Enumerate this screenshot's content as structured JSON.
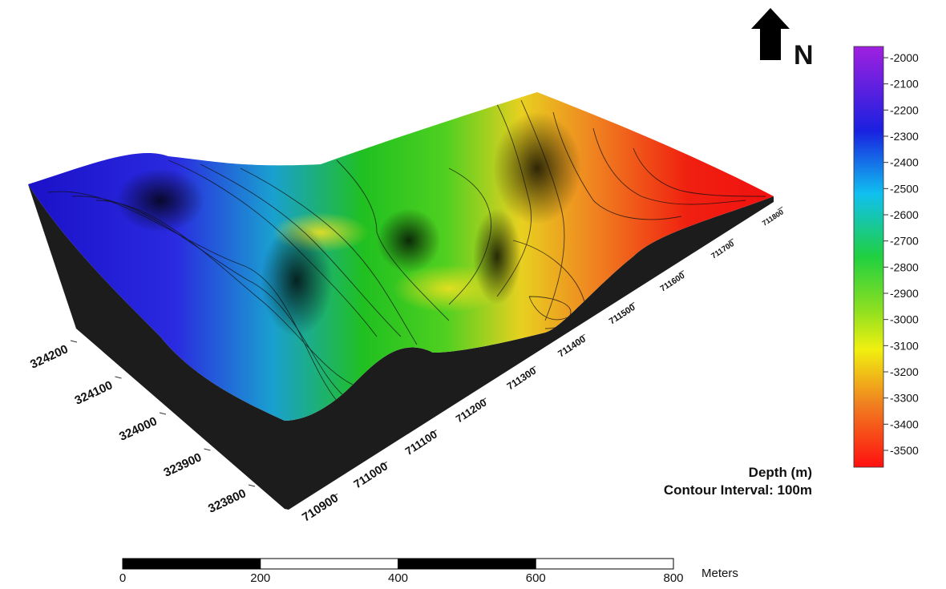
{
  "north": "N",
  "legend": {
    "title": "Depth (m)",
    "contour_interval": "Contour Interval: 100m",
    "ticks": [
      -2000,
      -2100,
      -2200,
      -2300,
      -2400,
      -2500,
      -2600,
      -2700,
      -2800,
      -2900,
      -3000,
      -3100,
      -3200,
      -3300,
      -3400,
      -3500
    ]
  },
  "x_axis": {
    "ticks": [
      710900,
      711000,
      711100,
      711200,
      711300,
      711400,
      711500,
      711600,
      711700,
      711800
    ]
  },
  "y_axis": {
    "ticks": [
      324200,
      324100,
      324000,
      323900,
      323800
    ]
  },
  "scale_bar": {
    "ticks": [
      0,
      200,
      400,
      600,
      800
    ],
    "unit": "Meters"
  }
}
